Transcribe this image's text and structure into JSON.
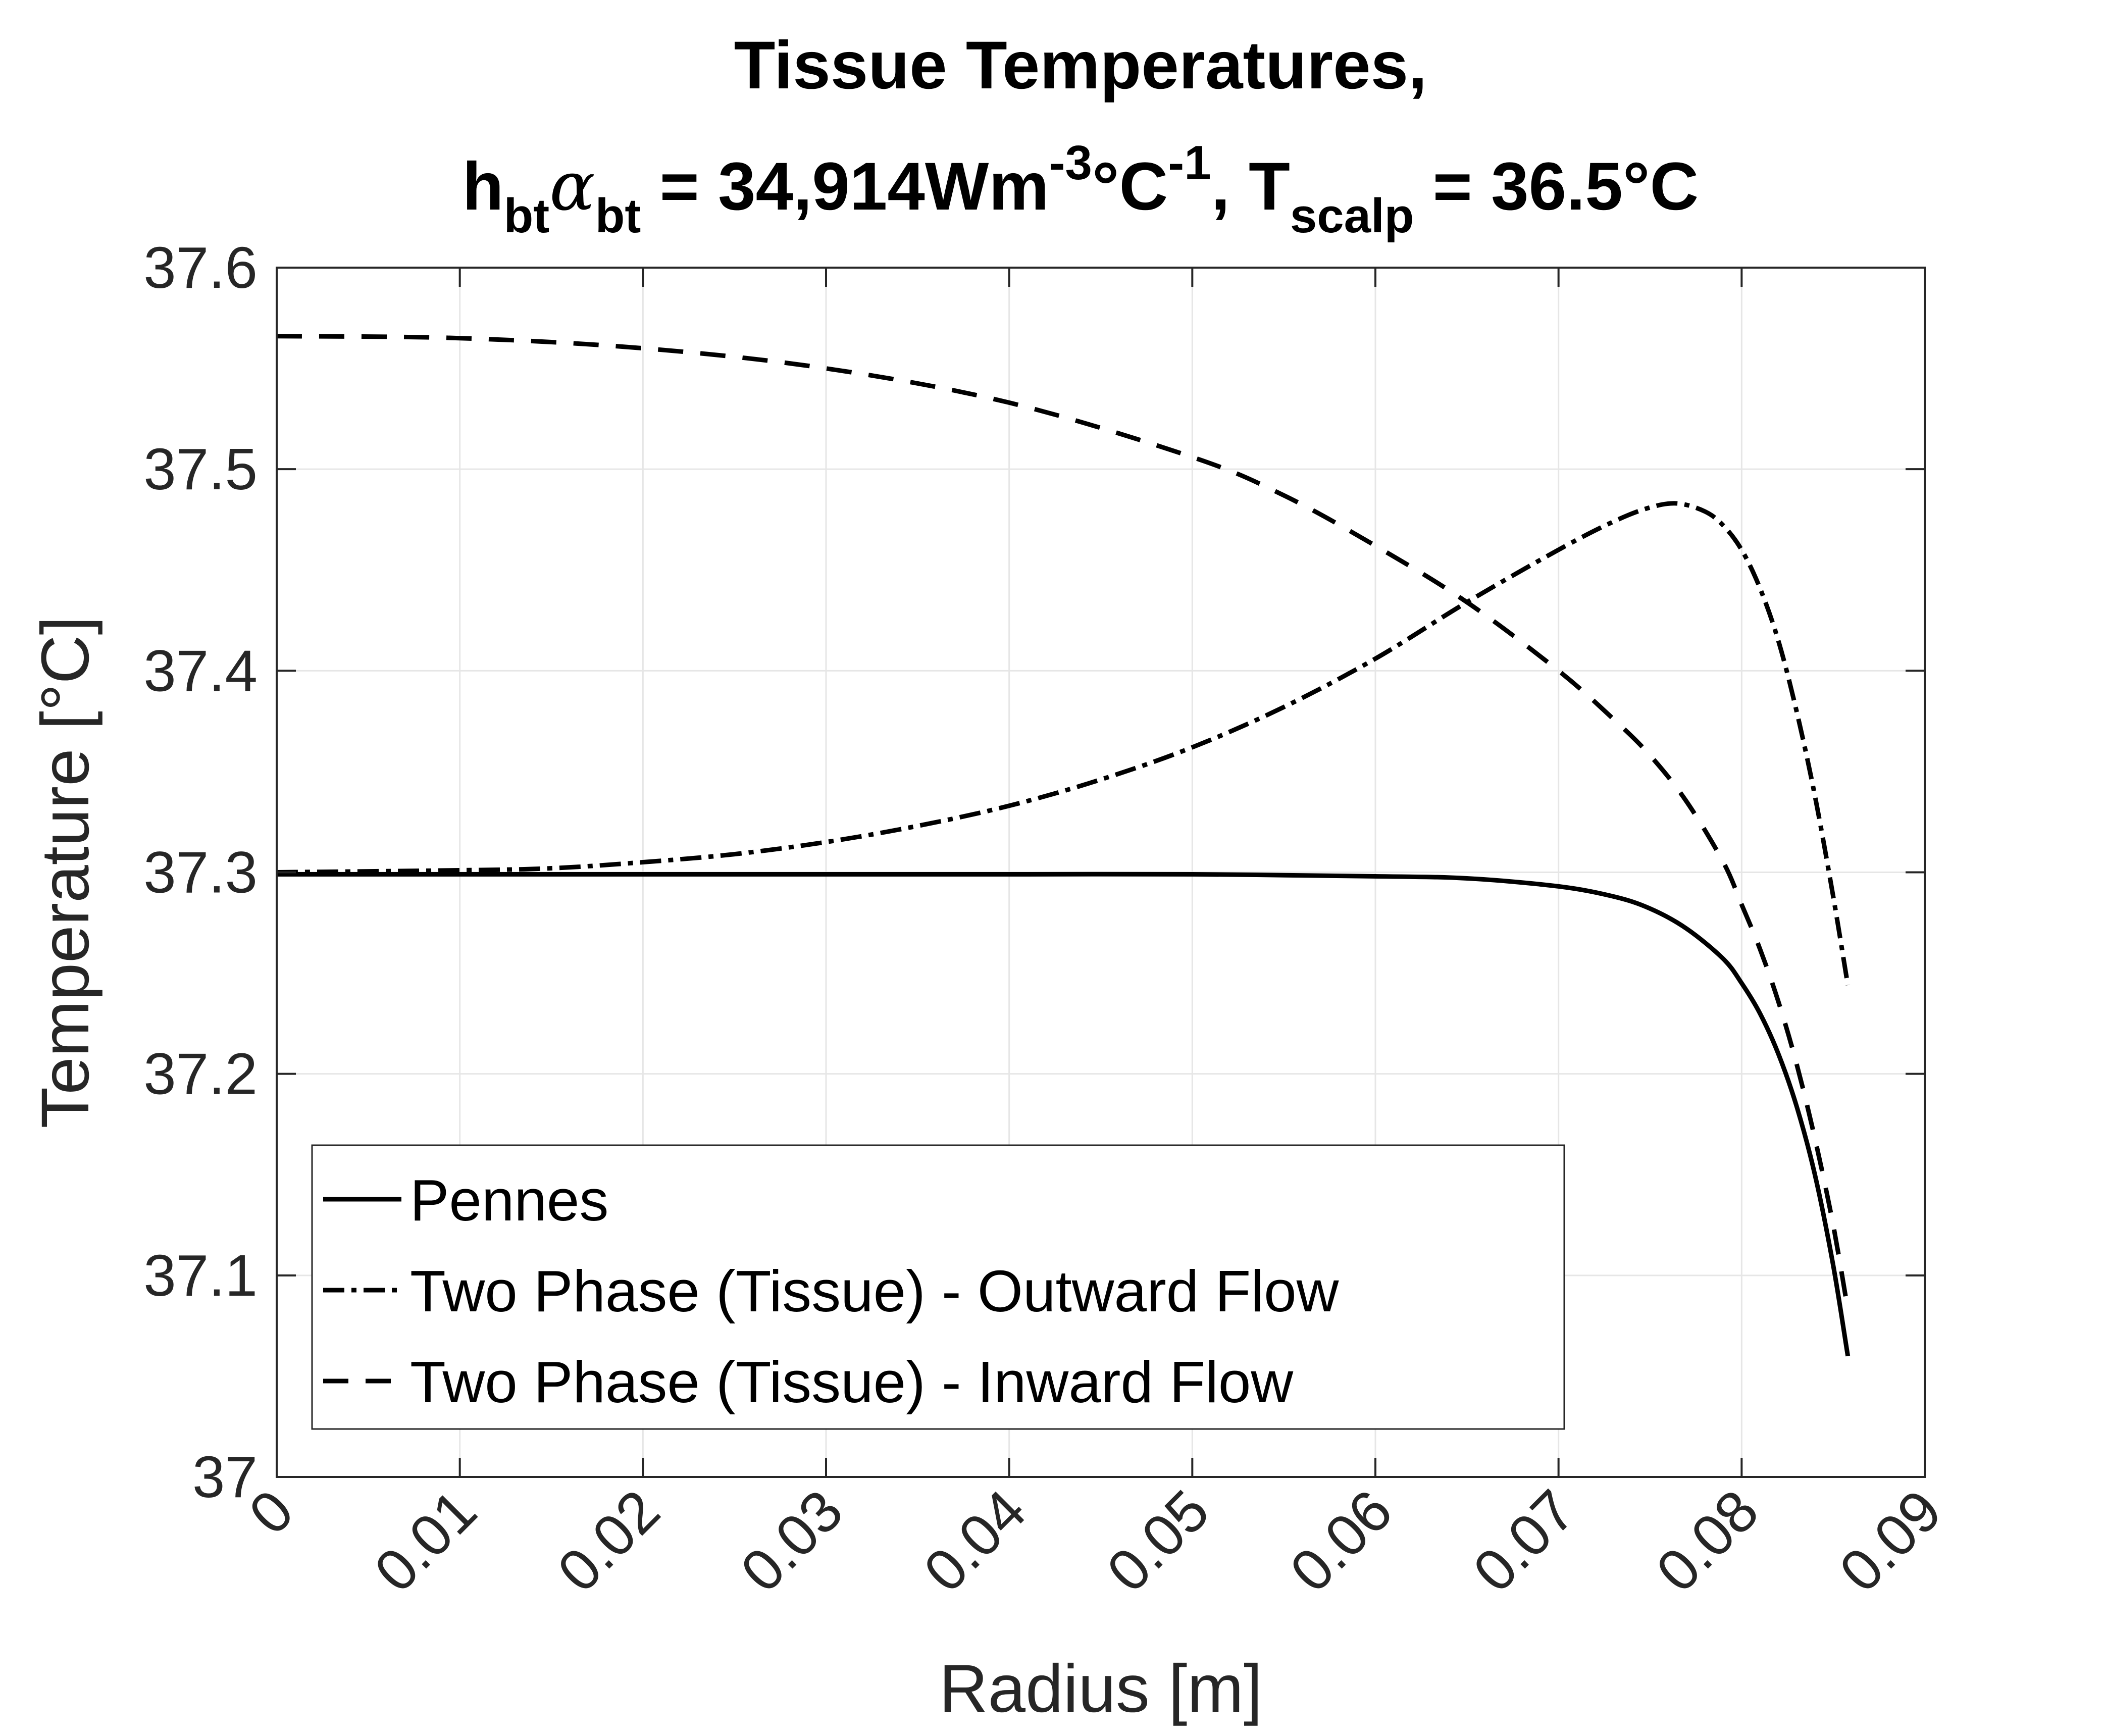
{
  "chart_data": {
    "type": "line",
    "title": {
      "line1": "Tissue Temperatures,",
      "line2": {
        "h": "h",
        "h_sub": "bt",
        "alpha": "α",
        "alpha_sub": "bt",
        "value": " = 34,914Wm",
        "exp1": "-3",
        "deg_c": "°C",
        "exp2": "-1",
        "t_part": ", T",
        "t_sub": "scalp",
        "end": " = 36.5°C"
      }
    },
    "xlabel": "Radius [m]",
    "ylabel": "Temperature [°C]",
    "xlim": [
      0,
      0.09
    ],
    "ylim": [
      37,
      37.6
    ],
    "xticks": [
      0,
      0.01,
      0.02,
      0.03,
      0.04,
      0.05,
      0.06,
      0.07,
      0.08,
      0.09
    ],
    "xtick_labels": [
      "0",
      "0.01",
      "0.02",
      "0.03",
      "0.04",
      "0.05",
      "0.06",
      "0.07",
      "0.08",
      "0.09"
    ],
    "yticks": [
      37,
      37.1,
      37.2,
      37.3,
      37.4,
      37.5,
      37.6
    ],
    "ytick_labels": [
      "37",
      "37.1",
      "37.2",
      "37.3",
      "37.4",
      "37.5",
      "37.6"
    ],
    "grid": true,
    "legend_position": "bottom-left",
    "colors": {
      "line": "#000000",
      "axis": "#262626",
      "grid": "#e6e6e6"
    },
    "series": [
      {
        "name": "Pennes",
        "style": "solid",
        "x": [
          0,
          0.01,
          0.02,
          0.03,
          0.04,
          0.05,
          0.06,
          0.065,
          0.07,
          0.073,
          0.075,
          0.077,
          0.079,
          0.08,
          0.081,
          0.082,
          0.083,
          0.084,
          0.085,
          0.0858
        ],
        "y": [
          37.299,
          37.299,
          37.299,
          37.299,
          37.299,
          37.299,
          37.298,
          37.297,
          37.293,
          37.288,
          37.282,
          37.272,
          37.257,
          37.245,
          37.23,
          37.21,
          37.184,
          37.15,
          37.105,
          37.06
        ]
      },
      {
        "name": "Two Phase (Tissue) - Outward Flow",
        "style": "dash-dot",
        "x": [
          0,
          0.01,
          0.015,
          0.02,
          0.025,
          0.03,
          0.035,
          0.04,
          0.045,
          0.05,
          0.055,
          0.06,
          0.065,
          0.07,
          0.073,
          0.075,
          0.0765,
          0.078,
          0.079,
          0.08,
          0.081,
          0.082,
          0.083,
          0.084,
          0.085,
          0.0858
        ],
        "y": [
          37.3,
          37.301,
          37.302,
          37.305,
          37.309,
          37.315,
          37.323,
          37.333,
          37.346,
          37.362,
          37.382,
          37.406,
          37.434,
          37.46,
          37.474,
          37.481,
          37.483,
          37.479,
          37.472,
          37.46,
          37.441,
          37.415,
          37.38,
          37.338,
          37.288,
          37.244
        ]
      },
      {
        "name": "Two Phase (Tissue) - Inward Flow",
        "style": "dashed",
        "x": [
          0,
          0.01,
          0.02,
          0.03,
          0.04,
          0.05,
          0.055,
          0.06,
          0.065,
          0.07,
          0.073,
          0.075,
          0.077,
          0.079,
          0.08,
          0.081,
          0.082,
          0.083,
          0.084,
          0.085,
          0.0858
        ],
        "y": [
          37.566,
          37.565,
          37.56,
          37.55,
          37.533,
          37.506,
          37.487,
          37.462,
          37.434,
          37.4,
          37.376,
          37.358,
          37.335,
          37.305,
          37.284,
          37.262,
          37.236,
          37.205,
          37.168,
          37.125,
          37.083
        ]
      }
    ]
  }
}
